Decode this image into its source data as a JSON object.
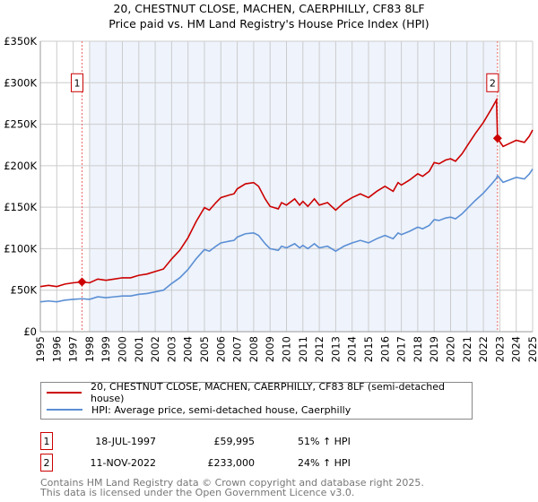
{
  "chart_data": {
    "type": "line",
    "title": "20, CHESTNUT CLOSE, MACHEN, CAERPHILLY, CF83 8LF",
    "subtitle": "Price paid vs. HM Land Registry's House Price Index (HPI)",
    "xlim": [
      1995,
      2025
    ],
    "ylim": [
      0,
      350000
    ],
    "x_ticks": [
      "1995",
      "1996",
      "1997",
      "1998",
      "1999",
      "2000",
      "2001",
      "2002",
      "2003",
      "2004",
      "2005",
      "2006",
      "2007",
      "2008",
      "2009",
      "2010",
      "2011",
      "2012",
      "2013",
      "2014",
      "2015",
      "2016",
      "2017",
      "2018",
      "2019",
      "2020",
      "2021",
      "2022",
      "2023",
      "2024",
      "2025"
    ],
    "y_ticks": [
      {
        "v": 0,
        "label": "£0"
      },
      {
        "v": 50000,
        "label": "£50K"
      },
      {
        "v": 100000,
        "label": "£100K"
      },
      {
        "v": 150000,
        "label": "£150K"
      },
      {
        "v": 200000,
        "label": "£200K"
      },
      {
        "v": 250000,
        "label": "£250K"
      },
      {
        "v": 300000,
        "label": "£300K"
      },
      {
        "v": 350000,
        "label": "£350K"
      }
    ],
    "grid": true,
    "colors": {
      "property": "#cc0000",
      "hpi": "#5b8fd4",
      "shade": "#eef3fc"
    },
    "hpi_series": {
      "name": "HPI: Average price, semi-detached house, Caerphilly",
      "points": [
        [
          1995,
          36
        ],
        [
          1995.5,
          37
        ],
        [
          1996,
          36
        ],
        [
          1996.5,
          38
        ],
        [
          1997,
          39
        ],
        [
          1997.54,
          39.7
        ],
        [
          1998,
          39
        ],
        [
          1998.5,
          42
        ],
        [
          1999,
          41
        ],
        [
          1999.5,
          42
        ],
        [
          2000,
          43
        ],
        [
          2000.5,
          43
        ],
        [
          2001,
          45
        ],
        [
          2001.5,
          46
        ],
        [
          2002,
          48
        ],
        [
          2002.5,
          50
        ],
        [
          2003,
          58
        ],
        [
          2003.5,
          65
        ],
        [
          2004,
          75
        ],
        [
          2004.5,
          88
        ],
        [
          2005,
          99
        ],
        [
          2005.3,
          97
        ],
        [
          2005.7,
          103
        ],
        [
          2006,
          107
        ],
        [
          2006.5,
          109
        ],
        [
          2006.8,
          110
        ],
        [
          2007,
          114
        ],
        [
          2007.5,
          118
        ],
        [
          2008,
          119
        ],
        [
          2008.3,
          116
        ],
        [
          2008.7,
          106
        ],
        [
          2009,
          100
        ],
        [
          2009.5,
          98
        ],
        [
          2009.7,
          103
        ],
        [
          2010,
          101
        ],
        [
          2010.5,
          106
        ],
        [
          2010.8,
          101
        ],
        [
          2011,
          104
        ],
        [
          2011.3,
          100
        ],
        [
          2011.7,
          106
        ],
        [
          2012,
          101
        ],
        [
          2012.5,
          103
        ],
        [
          2013,
          97
        ],
        [
          2013.5,
          103
        ],
        [
          2014,
          107
        ],
        [
          2014.5,
          110
        ],
        [
          2015,
          107
        ],
        [
          2015.5,
          112
        ],
        [
          2016,
          116
        ],
        [
          2016.5,
          112
        ],
        [
          2016.8,
          119
        ],
        [
          2017,
          117
        ],
        [
          2017.5,
          121
        ],
        [
          2018,
          126
        ],
        [
          2018.3,
          124
        ],
        [
          2018.7,
          128
        ],
        [
          2019,
          135
        ],
        [
          2019.3,
          134
        ],
        [
          2019.7,
          137
        ],
        [
          2020,
          138
        ],
        [
          2020.3,
          136
        ],
        [
          2020.7,
          142
        ],
        [
          2021,
          148
        ],
        [
          2021.5,
          158
        ],
        [
          2022,
          167
        ],
        [
          2022.5,
          178
        ],
        [
          2022.8,
          185
        ],
        [
          2022.86,
          188
        ],
        [
          2023.2,
          180
        ],
        [
          2023.6,
          183
        ],
        [
          2024,
          186
        ],
        [
          2024.5,
          184
        ],
        [
          2024.8,
          190
        ],
        [
          2025,
          196
        ]
      ],
      "unit": "thousand GBP"
    },
    "property_series": {
      "name": "20, CHESTNUT CLOSE, MACHEN, CAERPHILLY, CF83 8LF (semi-detached house)",
      "derived_from_hpi_ratio": [
        {
          "until": 2022.8,
          "ratio": 1.51
        },
        {
          "until": 2025,
          "ratio": 1.24
        }
      ]
    },
    "sales": [
      {
        "id": "1",
        "x": 1997.54,
        "y": 59995
      },
      {
        "id": "2",
        "x": 2022.86,
        "y": 233000
      }
    ],
    "shade_range": [
      1998,
      2022.86
    ]
  },
  "legend": {
    "property": "20, CHESTNUT CLOSE, MACHEN, CAERPHILLY, CF83 8LF (semi-detached house)",
    "hpi": "HPI: Average price, semi-detached house, Caerphilly"
  },
  "transactions": [
    {
      "num": "1",
      "date": "18-JUL-1997",
      "price": "£59,995",
      "hpi": "51% ↑ HPI"
    },
    {
      "num": "2",
      "date": "11-NOV-2022",
      "price": "£233,000",
      "hpi": "24% ↑ HPI"
    }
  ],
  "footer": {
    "line1": "Contains HM Land Registry data © Crown copyright and database right 2025.",
    "line2": "This data is licensed under the Open Government Licence v3.0."
  }
}
